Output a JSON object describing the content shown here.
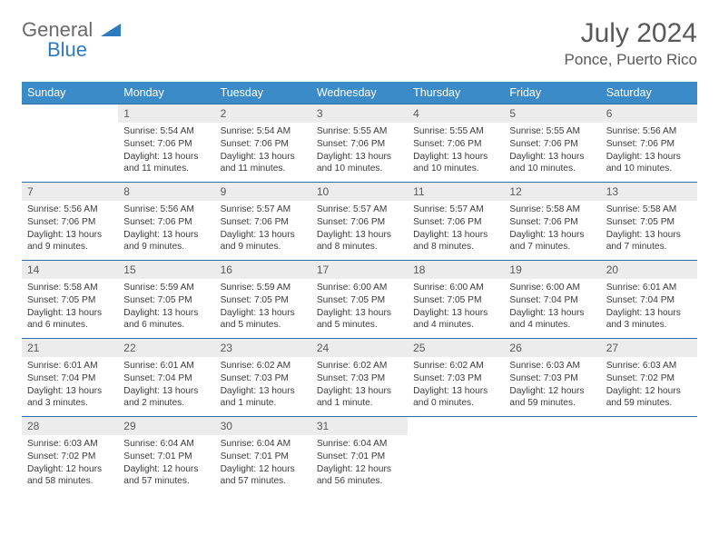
{
  "brand": {
    "word1": "General",
    "word2": "Blue",
    "logo_color": "#2c7bbf",
    "gray": "#6a6a6a"
  },
  "title": "July 2024",
  "location": "Ponce, Puerto Rico",
  "header_bg": "#3b8bc9",
  "header_fg": "#ffffff",
  "daynum_bg": "#ececec",
  "border_color": "#2c6ea8",
  "text_color": "#3a3a3a",
  "days": [
    "Sunday",
    "Monday",
    "Tuesday",
    "Wednesday",
    "Thursday",
    "Friday",
    "Saturday"
  ],
  "weeks": [
    [
      null,
      {
        "n": "1",
        "sr": "5:54 AM",
        "ss": "7:06 PM",
        "dl": "13 hours and 11 minutes."
      },
      {
        "n": "2",
        "sr": "5:54 AM",
        "ss": "7:06 PM",
        "dl": "13 hours and 11 minutes."
      },
      {
        "n": "3",
        "sr": "5:55 AM",
        "ss": "7:06 PM",
        "dl": "13 hours and 10 minutes."
      },
      {
        "n": "4",
        "sr": "5:55 AM",
        "ss": "7:06 PM",
        "dl": "13 hours and 10 minutes."
      },
      {
        "n": "5",
        "sr": "5:55 AM",
        "ss": "7:06 PM",
        "dl": "13 hours and 10 minutes."
      },
      {
        "n": "6",
        "sr": "5:56 AM",
        "ss": "7:06 PM",
        "dl": "13 hours and 10 minutes."
      }
    ],
    [
      {
        "n": "7",
        "sr": "5:56 AM",
        "ss": "7:06 PM",
        "dl": "13 hours and 9 minutes."
      },
      {
        "n": "8",
        "sr": "5:56 AM",
        "ss": "7:06 PM",
        "dl": "13 hours and 9 minutes."
      },
      {
        "n": "9",
        "sr": "5:57 AM",
        "ss": "7:06 PM",
        "dl": "13 hours and 9 minutes."
      },
      {
        "n": "10",
        "sr": "5:57 AM",
        "ss": "7:06 PM",
        "dl": "13 hours and 8 minutes."
      },
      {
        "n": "11",
        "sr": "5:57 AM",
        "ss": "7:06 PM",
        "dl": "13 hours and 8 minutes."
      },
      {
        "n": "12",
        "sr": "5:58 AM",
        "ss": "7:06 PM",
        "dl": "13 hours and 7 minutes."
      },
      {
        "n": "13",
        "sr": "5:58 AM",
        "ss": "7:05 PM",
        "dl": "13 hours and 7 minutes."
      }
    ],
    [
      {
        "n": "14",
        "sr": "5:58 AM",
        "ss": "7:05 PM",
        "dl": "13 hours and 6 minutes."
      },
      {
        "n": "15",
        "sr": "5:59 AM",
        "ss": "7:05 PM",
        "dl": "13 hours and 6 minutes."
      },
      {
        "n": "16",
        "sr": "5:59 AM",
        "ss": "7:05 PM",
        "dl": "13 hours and 5 minutes."
      },
      {
        "n": "17",
        "sr": "6:00 AM",
        "ss": "7:05 PM",
        "dl": "13 hours and 5 minutes."
      },
      {
        "n": "18",
        "sr": "6:00 AM",
        "ss": "7:05 PM",
        "dl": "13 hours and 4 minutes."
      },
      {
        "n": "19",
        "sr": "6:00 AM",
        "ss": "7:04 PM",
        "dl": "13 hours and 4 minutes."
      },
      {
        "n": "20",
        "sr": "6:01 AM",
        "ss": "7:04 PM",
        "dl": "13 hours and 3 minutes."
      }
    ],
    [
      {
        "n": "21",
        "sr": "6:01 AM",
        "ss": "7:04 PM",
        "dl": "13 hours and 3 minutes."
      },
      {
        "n": "22",
        "sr": "6:01 AM",
        "ss": "7:04 PM",
        "dl": "13 hours and 2 minutes."
      },
      {
        "n": "23",
        "sr": "6:02 AM",
        "ss": "7:03 PM",
        "dl": "13 hours and 1 minute."
      },
      {
        "n": "24",
        "sr": "6:02 AM",
        "ss": "7:03 PM",
        "dl": "13 hours and 1 minute."
      },
      {
        "n": "25",
        "sr": "6:02 AM",
        "ss": "7:03 PM",
        "dl": "13 hours and 0 minutes."
      },
      {
        "n": "26",
        "sr": "6:03 AM",
        "ss": "7:03 PM",
        "dl": "12 hours and 59 minutes."
      },
      {
        "n": "27",
        "sr": "6:03 AM",
        "ss": "7:02 PM",
        "dl": "12 hours and 59 minutes."
      }
    ],
    [
      {
        "n": "28",
        "sr": "6:03 AM",
        "ss": "7:02 PM",
        "dl": "12 hours and 58 minutes."
      },
      {
        "n": "29",
        "sr": "6:04 AM",
        "ss": "7:01 PM",
        "dl": "12 hours and 57 minutes."
      },
      {
        "n": "30",
        "sr": "6:04 AM",
        "ss": "7:01 PM",
        "dl": "12 hours and 57 minutes."
      },
      {
        "n": "31",
        "sr": "6:04 AM",
        "ss": "7:01 PM",
        "dl": "12 hours and 56 minutes."
      },
      null,
      null,
      null
    ]
  ],
  "labels": {
    "sunrise": "Sunrise:",
    "sunset": "Sunset:",
    "daylight": "Daylight:"
  }
}
